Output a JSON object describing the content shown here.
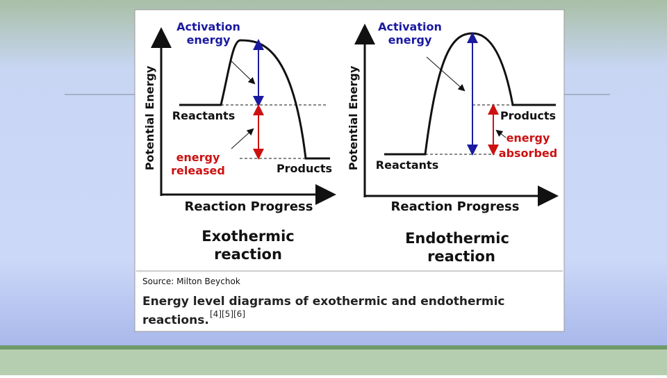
{
  "diagrams": [
    {
      "activation_label": [
        "Activation",
        "energy"
      ],
      "reactants": "Reactants",
      "products": "Products",
      "energy_label": [
        "energy",
        "released"
      ],
      "y_label": "Potential Energy",
      "x_label": "Reaction Progress",
      "caption": [
        "Exothermic",
        "reaction"
      ]
    },
    {
      "activation_label": [
        "Activation",
        "energy"
      ],
      "reactants": "Reactants",
      "products": "Products",
      "energy_label": [
        "energy",
        "absorbed"
      ],
      "y_label": "Potential Energy",
      "x_label": "Reaction Progress",
      "caption": [
        "Endothermic",
        "reaction"
      ]
    }
  ],
  "source": "Source: Milton Beychok",
  "description": [
    "Energy level diagrams of exothermic and endothermic",
    "reactions."
  ],
  "references": "[4][5][6]"
}
